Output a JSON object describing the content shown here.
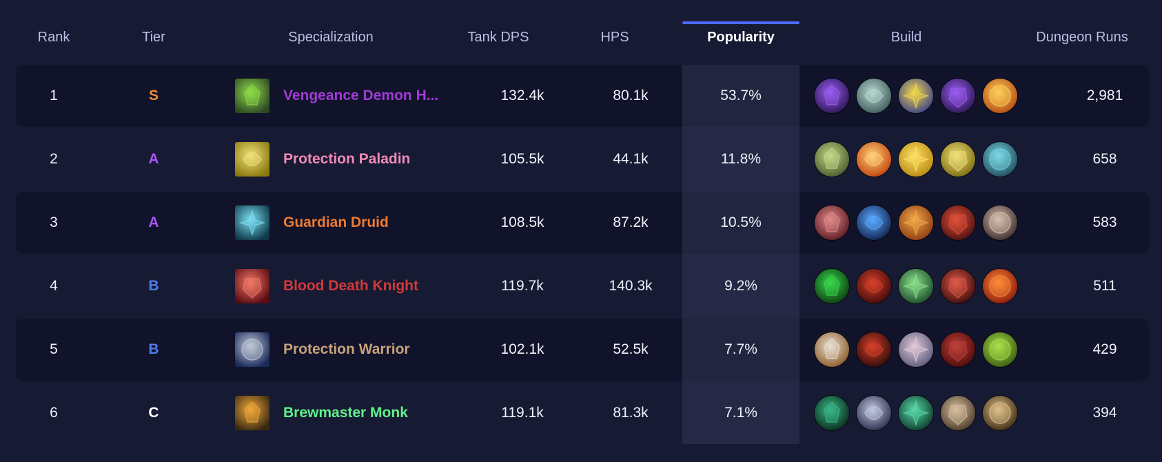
{
  "columns": {
    "rank": "Rank",
    "tier": "Tier",
    "specialization": "Specialization",
    "tank_dps": "Tank DPS",
    "hps": "HPS",
    "popularity": "Popularity",
    "build": "Build",
    "dungeon_runs": "Dungeon Runs"
  },
  "sorted_column": "popularity",
  "rows": [
    {
      "rank": "1",
      "tier": "S",
      "tier_color": "#f08c3a",
      "spec": "Vengeance Demon H...",
      "spec_color": "#a33ad6",
      "spec_icon": "vengeance-demon-hunter-icon",
      "spec_icon_colors": [
        "#2f4a23",
        "#8fdc4a"
      ],
      "tank_dps": "132.4k",
      "hps": "80.1k",
      "popularity": "53.7%",
      "dungeon_runs": "2,981",
      "build": [
        {
          "icon": "void-orb-talent-icon",
          "colors": [
            "#2a1650",
            "#9a5cf2"
          ]
        },
        {
          "icon": "spectral-skull-talent-icon",
          "colors": [
            "#3f5a5a",
            "#b6d8d0"
          ]
        },
        {
          "icon": "fel-blade-talent-icon",
          "colors": [
            "#3a3f8a",
            "#f2d84a"
          ]
        },
        {
          "icon": "void-orb-talent-icon",
          "colors": [
            "#2a1650",
            "#9a5cf2"
          ]
        },
        {
          "icon": "flame-burst-talent-icon",
          "colors": [
            "#b34a12",
            "#ffcf5a"
          ]
        }
      ]
    },
    {
      "rank": "2",
      "tier": "A",
      "tier_color": "#a855f7",
      "spec": "Protection Paladin",
      "spec_color": "#f08ab8",
      "spec_icon": "protection-paladin-icon",
      "spec_icon_colors": [
        "#8a7a10",
        "#f2e27a"
      ],
      "tank_dps": "105.5k",
      "hps": "44.1k",
      "popularity": "11.8%",
      "dungeon_runs": "658",
      "build": [
        {
          "icon": "guardian-beast-talent-icon",
          "colors": [
            "#4a5a2a",
            "#c6d88a"
          ]
        },
        {
          "icon": "divine-pillar-talent-icon",
          "colors": [
            "#c2410c",
            "#ffd27a"
          ]
        },
        {
          "icon": "holy-avenger-talent-icon",
          "colors": [
            "#b88a10",
            "#ffe066"
          ]
        },
        {
          "icon": "golden-helm-talent-icon",
          "colors": [
            "#7a6a10",
            "#f2e27a"
          ]
        },
        {
          "icon": "arcane-rune-talent-icon",
          "colors": [
            "#1f4a5a",
            "#7ad8e6"
          ]
        }
      ]
    },
    {
      "rank": "3",
      "tier": "A",
      "tier_color": "#a855f7",
      "spec": "Guardian Druid",
      "spec_color": "#f07a2e",
      "spec_icon": "guardian-druid-icon",
      "spec_icon_colors": [
        "#0f3a4a",
        "#7ae0f2"
      ],
      "tank_dps": "108.5k",
      "hps": "87.2k",
      "popularity": "10.5%",
      "dungeon_runs": "583",
      "build": [
        {
          "icon": "rending-claws-talent-icon",
          "colors": [
            "#5a1a22",
            "#e08a8a"
          ]
        },
        {
          "icon": "storm-swirl-talent-icon",
          "colors": [
            "#10204a",
            "#5aa8ff"
          ]
        },
        {
          "icon": "ursine-hammer-talent-icon",
          "colors": [
            "#8a3a10",
            "#f2a84a"
          ]
        },
        {
          "icon": "dire-bear-talent-icon",
          "colors": [
            "#4a0f10",
            "#e0503a"
          ]
        },
        {
          "icon": "bear-claw-talent-icon",
          "colors": [
            "#3a2a2a",
            "#d8c0b0"
          ]
        }
      ]
    },
    {
      "rank": "4",
      "tier": "B",
      "tier_color": "#4f7cf2",
      "spec": "Blood Death Knight",
      "spec_color": "#d13a3a",
      "spec_icon": "blood-death-knight-icon",
      "spec_icon_colors": [
        "#5a0a10",
        "#f27a6a"
      ],
      "tank_dps": "119.7k",
      "hps": "140.3k",
      "popularity": "9.2%",
      "dungeon_runs": "511",
      "build": [
        {
          "icon": "dark-portal-talent-icon",
          "colors": [
            "#0a3a10",
            "#3ad84a"
          ]
        },
        {
          "icon": "crimson-skull-talent-icon",
          "colors": [
            "#3a0a0a",
            "#d8402a"
          ]
        },
        {
          "icon": "plague-ghoul-talent-icon",
          "colors": [
            "#1a4a2a",
            "#8ae08a"
          ]
        },
        {
          "icon": "blood-strike-talent-icon",
          "colors": [
            "#3a0a0a",
            "#e05a4a"
          ]
        },
        {
          "icon": "fiery-heart-talent-icon",
          "colors": [
            "#8a1a0a",
            "#ff8a3a"
          ]
        }
      ]
    },
    {
      "rank": "5",
      "tier": "B",
      "tier_color": "#4f7cf2",
      "spec": "Protection Warrior",
      "spec_color": "#c8a27a",
      "spec_icon": "protection-warrior-icon",
      "spec_icon_colors": [
        "#1a2a5a",
        "#c0c8d8"
      ],
      "tank_dps": "102.1k",
      "hps": "52.5k",
      "popularity": "7.7%",
      "dungeon_runs": "429",
      "build": [
        {
          "icon": "shield-wall-talent-icon",
          "colors": [
            "#8a5a2a",
            "#e8e0d0"
          ]
        },
        {
          "icon": "crimson-eclipse-talent-icon",
          "colors": [
            "#2a0a0a",
            "#d8402a"
          ]
        },
        {
          "icon": "shouting-warrior-talent-icon",
          "colors": [
            "#5a5a7a",
            "#e0c8d8"
          ]
        },
        {
          "icon": "demonic-rage-talent-icon",
          "colors": [
            "#4a0a0a",
            "#c0403a"
          ]
        },
        {
          "icon": "ogre-strength-talent-icon",
          "colors": [
            "#3a5a10",
            "#a8e04a"
          ]
        }
      ]
    },
    {
      "rank": "6",
      "tier": "C",
      "tier_color": "#ffffff",
      "spec": "Brewmaster Monk",
      "spec_color": "#5ef28a",
      "spec_icon": "brewmaster-monk-icon",
      "spec_icon_colors": [
        "#3a2a10",
        "#f2a83a"
      ],
      "tank_dps": "119.1k",
      "hps": "81.3k",
      "popularity": "7.1%",
      "dungeon_runs": "394",
      "build": [
        {
          "icon": "jade-vortex-talent-icon",
          "colors": [
            "#0a2a1a",
            "#3ab88a"
          ]
        },
        {
          "icon": "spinning-kick-talent-icon",
          "colors": [
            "#2a2a4a",
            "#c0c8e0"
          ]
        },
        {
          "icon": "jade-serpent-talent-icon",
          "colors": [
            "#0a3a2a",
            "#5ad8a8"
          ]
        },
        {
          "icon": "iron-fist-talent-icon",
          "colors": [
            "#4a3a2a",
            "#d8c0a0"
          ]
        },
        {
          "icon": "drunken-brawler-talent-icon",
          "colors": [
            "#3a2a10",
            "#e0c08a"
          ]
        }
      ]
    }
  ]
}
